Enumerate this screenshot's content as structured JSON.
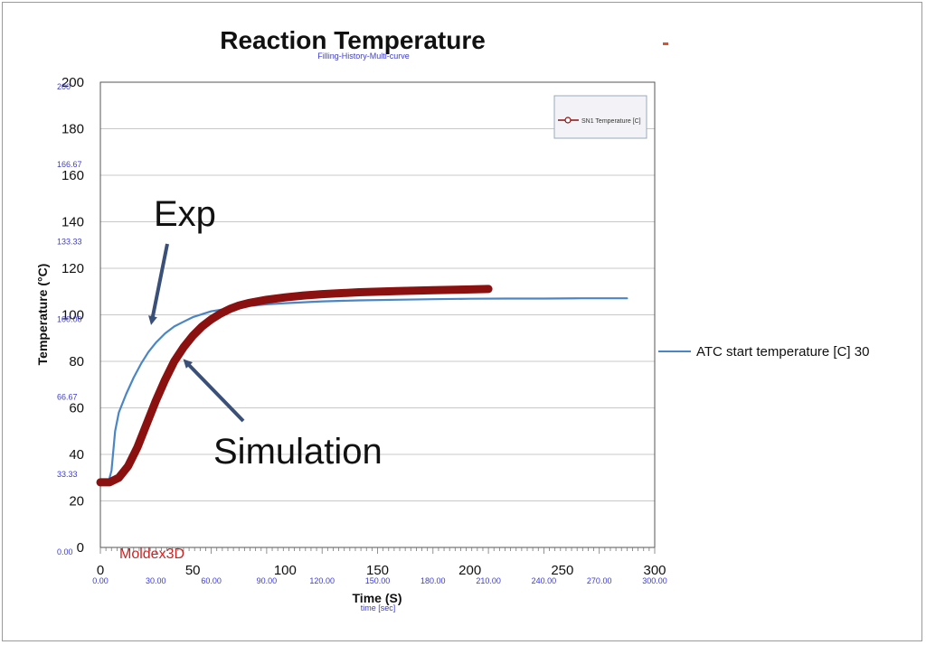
{
  "chart_data": {
    "type": "line",
    "title": "Reaction Temperature",
    "subtitle": "Filling-History-Multi-curve",
    "xlabel": "Time (S)",
    "ylabel": "Temperature (°C)",
    "xlabel_secondary": "time [sec]",
    "xlim": [
      0,
      300
    ],
    "ylim": [
      0,
      200
    ],
    "xticks": [
      "0",
      "50",
      "100",
      "150",
      "200",
      "250",
      "300"
    ],
    "yticks": [
      "0",
      "20",
      "40",
      "60",
      "80",
      "100",
      "120",
      "140",
      "160",
      "180",
      "200"
    ],
    "secondary_xticks": [
      "0.00",
      "30.00",
      "60.00",
      "90.00",
      "120.00",
      "150.00",
      "180.00",
      "210.00",
      "240.00",
      "270.00",
      "300.00"
    ],
    "secondary_yticks": [
      "0.00",
      "33.33",
      "66.67",
      "100.00",
      "133.33",
      "166.67",
      "200"
    ],
    "grid": true,
    "series": [
      {
        "name": "ATC start temperature [C] 30",
        "color": "#4a86c5",
        "x": [
          0,
          4,
          6,
          8,
          10,
          14,
          18,
          22,
          26,
          30,
          35,
          40,
          45,
          50,
          60,
          70,
          80,
          90,
          100,
          120,
          140,
          160,
          180,
          200,
          220,
          240,
          260,
          285
        ],
        "y": [
          27,
          27,
          33,
          50,
          58,
          66,
          73,
          79,
          84,
          88,
          92,
          95,
          97,
          99,
          101.5,
          102.8,
          103.8,
          104.5,
          105,
          105.8,
          106.2,
          106.5,
          106.7,
          106.9,
          107,
          107,
          107.1,
          107.1
        ]
      },
      {
        "name": "SN1 Temperature [C]",
        "color": "#8b1010",
        "x": [
          0,
          5,
          10,
          15,
          20,
          25,
          30,
          35,
          40,
          45,
          50,
          55,
          60,
          65,
          70,
          75,
          80,
          90,
          100,
          110,
          120,
          140,
          160,
          180,
          200,
          210
        ],
        "y": [
          28,
          28,
          30,
          35,
          43,
          53,
          63,
          72,
          80,
          86,
          91,
          95,
          98,
          100.5,
          102.5,
          104,
          105,
          106.5,
          107.5,
          108.3,
          108.9,
          109.7,
          110.2,
          110.6,
          110.9,
          111.1
        ]
      }
    ],
    "legend_box": "SN1 Temperature [C]",
    "legend_outside": "ATC start temperature [C] 30",
    "legend_position": "top-right",
    "annotations": [
      {
        "text": "Exp"
      },
      {
        "text": "Simulation"
      }
    ],
    "logo": "Moldex3D"
  }
}
